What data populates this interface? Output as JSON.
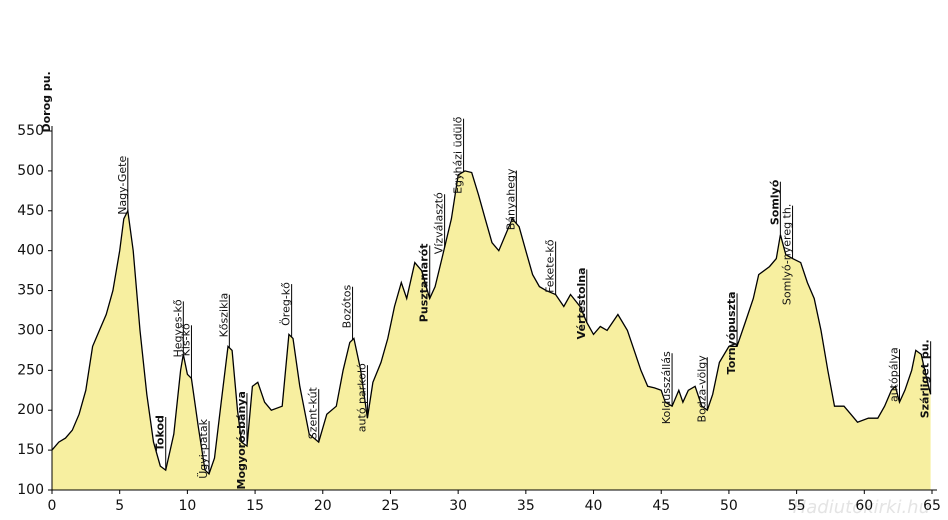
{
  "chart_data": {
    "type": "area",
    "x": [
      0,
      0.5,
      1,
      1.5,
      2,
      2.5,
      3,
      3.5,
      4,
      4.5,
      5,
      5.3,
      5.6,
      6,
      6.5,
      7,
      7.5,
      8,
      8.4,
      9,
      9.5,
      9.7,
      10,
      10.3,
      10.8,
      11.3,
      11.6,
      12,
      12.5,
      13,
      13.3,
      13.7,
      14,
      14.4,
      14.8,
      15.2,
      15.7,
      16.2,
      17,
      17.5,
      17.8,
      18.3,
      19,
      19.7,
      20.3,
      21,
      21.5,
      22,
      22.3,
      22.8,
      23.3,
      23.7,
      24.3,
      24.8,
      25.3,
      25.8,
      26.2,
      26.8,
      27.3,
      27.9,
      28.3,
      28.8,
      29.5,
      30,
      30.5,
      31,
      31.5,
      32,
      32.5,
      33,
      33.5,
      34,
      34.5,
      35,
      35.5,
      36,
      36.5,
      37.2,
      37.8,
      38.3,
      39,
      39.5,
      40,
      40.5,
      41,
      41.8,
      42.5,
      43,
      43.5,
      44,
      44.5,
      45,
      45.3,
      45.8,
      46.3,
      46.6,
      47,
      47.5,
      48,
      48.4,
      48.8,
      49.3,
      50,
      50.6,
      51.2,
      51.8,
      52.2,
      53,
      53.5,
      53.8,
      54.2,
      54.7,
      55.3,
      55.8,
      56.3,
      56.8,
      57.3,
      57.8,
      58.5,
      59,
      59.5,
      60.3,
      61,
      61.5,
      62,
      62.3,
      62.6,
      63,
      63.5,
      63.8,
      64.2,
      64.6,
      64.9
    ],
    "values": [
      150,
      160,
      165,
      175,
      195,
      225,
      280,
      300,
      320,
      350,
      400,
      440,
      450,
      400,
      300,
      220,
      160,
      130,
      125,
      170,
      250,
      270,
      245,
      240,
      180,
      125,
      120,
      140,
      210,
      280,
      275,
      200,
      160,
      155,
      230,
      235,
      210,
      200,
      205,
      295,
      290,
      230,
      170,
      160,
      195,
      205,
      250,
      285,
      290,
      250,
      190,
      235,
      260,
      290,
      330,
      360,
      340,
      385,
      375,
      340,
      355,
      390,
      440,
      495,
      500,
      498,
      470,
      440,
      410,
      400,
      420,
      440,
      430,
      400,
      370,
      355,
      350,
      345,
      330,
      345,
      330,
      310,
      295,
      305,
      300,
      320,
      300,
      275,
      250,
      230,
      228,
      225,
      210,
      205,
      225,
      210,
      225,
      230,
      205,
      200,
      220,
      260,
      280,
      280,
      310,
      340,
      370,
      380,
      390,
      420,
      395,
      390,
      385,
      360,
      340,
      300,
      250,
      205,
      205,
      195,
      185,
      190,
      190,
      205,
      225,
      230,
      210,
      225,
      250,
      275,
      270,
      240,
      220
    ],
    "color": "#f7efa0",
    "line_color": "#000000",
    "xlim": [
      0,
      65
    ],
    "xticks": [
      0,
      5,
      10,
      15,
      20,
      25,
      30,
      35,
      40,
      45,
      50,
      55,
      60,
      65
    ],
    "ylim": [
      100,
      550
    ],
    "yticks": [
      100,
      150,
      200,
      250,
      300,
      350,
      400,
      450,
      500,
      550
    ],
    "annotations": [
      {
        "label": "Dorog pu.",
        "x": 0,
        "bold": true
      },
      {
        "label": "Nagy-Gete",
        "x": 5.6,
        "bold": false
      },
      {
        "label": "Tokod",
        "x": 8.4,
        "bold": true
      },
      {
        "label": "Hegyes-kő",
        "x": 9.7,
        "bold": false
      },
      {
        "label": "Kis-kő",
        "x": 10.3,
        "bold": false
      },
      {
        "label": "Ügyi-patak",
        "x": 11.6,
        "bold": false
      },
      {
        "label": "Kőszikla",
        "x": 13.1,
        "bold": false
      },
      {
        "label": "Mogyorósbánya",
        "x": 14.4,
        "bold": true
      },
      {
        "label": "Öreg-kő",
        "x": 17.7,
        "bold": false
      },
      {
        "label": "Szent-kút",
        "x": 19.7,
        "bold": false
      },
      {
        "label": "Bozótos",
        "x": 22.2,
        "bold": false
      },
      {
        "label": "autó parkoló",
        "x": 23.3,
        "bold": false
      },
      {
        "label": "Pusztamarót",
        "x": 27.9,
        "bold": true
      },
      {
        "label": "Vízválasztó",
        "x": 29.0,
        "bold": false
      },
      {
        "label": "Egyházi üdülő",
        "x": 30.4,
        "bold": false
      },
      {
        "label": "Bányahegy",
        "x": 34.3,
        "bold": false
      },
      {
        "label": "Fekete-kő",
        "x": 37.2,
        "bold": false
      },
      {
        "label": "Vértestolna",
        "x": 39.5,
        "bold": true
      },
      {
        "label": "Koldusszállás",
        "x": 45.8,
        "bold": false
      },
      {
        "label": "Bodza-völgy",
        "x": 48.4,
        "bold": false
      },
      {
        "label": "Tornyópuszta",
        "x": 50.6,
        "bold": true
      },
      {
        "label": "Somlyó",
        "x": 53.8,
        "bold": true
      },
      {
        "label": "Somlyó-nyereg th.",
        "x": 54.7,
        "bold": false
      },
      {
        "label": "autópálya",
        "x": 62.6,
        "bold": false
      },
      {
        "label": "Szárliget pu.",
        "x": 64.9,
        "bold": true
      }
    ],
    "watermark": "Hadiutokirki.hu"
  }
}
